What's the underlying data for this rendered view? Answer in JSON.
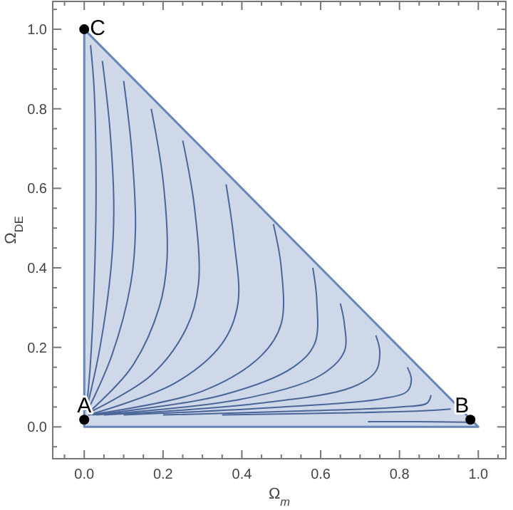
{
  "chart_data": {
    "type": "line",
    "xlabel": "Ω$_{m}$",
    "ylabel": "Ω$_{DE}$",
    "xlim": [
      -0.08,
      1.07
    ],
    "ylim": [
      -0.08,
      1.07
    ],
    "xticks": [
      {
        "value": -0.05,
        "label": null
      },
      {
        "value": 0,
        "label": "0.0"
      },
      {
        "value": 0.05,
        "label": null
      },
      {
        "value": 0.1,
        "label": null
      },
      {
        "value": 0.15,
        "label": null
      },
      {
        "value": 0.2,
        "label": "0.2"
      },
      {
        "value": 0.25,
        "label": null
      },
      {
        "value": 0.3,
        "label": null
      },
      {
        "value": 0.35,
        "label": null
      },
      {
        "value": 0.4,
        "label": "0.4"
      },
      {
        "value": 0.45,
        "label": null
      },
      {
        "value": 0.5,
        "label": null
      },
      {
        "value": 0.55,
        "label": null
      },
      {
        "value": 0.6,
        "label": "0.6"
      },
      {
        "value": 0.65,
        "label": null
      },
      {
        "value": 0.7,
        "label": null
      },
      {
        "value": 0.75,
        "label": null
      },
      {
        "value": 0.8,
        "label": "0.8"
      },
      {
        "value": 0.85,
        "label": null
      },
      {
        "value": 0.9,
        "label": null
      },
      {
        "value": 0.95,
        "label": null
      },
      {
        "value": 1,
        "label": "1.0"
      },
      {
        "value": 1.05,
        "label": null
      }
    ],
    "yticks": [
      {
        "value": -0.05,
        "label": null
      },
      {
        "value": 0,
        "label": "0.0"
      },
      {
        "value": 0.05,
        "label": null
      },
      {
        "value": 0.1,
        "label": null
      },
      {
        "value": 0.15,
        "label": null
      },
      {
        "value": 0.2,
        "label": "0.2"
      },
      {
        "value": 0.25,
        "label": null
      },
      {
        "value": 0.3,
        "label": null
      },
      {
        "value": 0.35,
        "label": null
      },
      {
        "value": 0.4,
        "label": "0.4"
      },
      {
        "value": 0.45,
        "label": null
      },
      {
        "value": 0.5,
        "label": null
      },
      {
        "value": 0.55,
        "label": null
      },
      {
        "value": 0.6,
        "label": "0.6"
      },
      {
        "value": 0.65,
        "label": null
      },
      {
        "value": 0.7,
        "label": null
      },
      {
        "value": 0.75,
        "label": null
      },
      {
        "value": 0.8,
        "label": "0.8"
      },
      {
        "value": 0.85,
        "label": null
      },
      {
        "value": 0.9,
        "label": null
      },
      {
        "value": 0.95,
        "label": null
      },
      {
        "value": 1,
        "label": "1.0"
      },
      {
        "value": 1.05,
        "label": null
      }
    ],
    "grid": false,
    "series": [
      {
        "type": "area",
        "color": "#6787ba",
        "x": [
          0,
          1
        ],
        "values": [
          1,
          0
        ]
      },
      {
        "color": "#4a6699",
        "x": [
          0.005,
          0.015,
          0.025,
          0.03,
          0.025,
          0.016
        ],
        "values": [
          0.04,
          0.15,
          0.35,
          0.6,
          0.85,
          0.96
        ]
      },
      {
        "color": "#4a6699",
        "x": [
          0.005,
          0.04,
          0.068,
          0.075,
          0.065,
          0.046
        ],
        "values": [
          0.04,
          0.2,
          0.4,
          0.55,
          0.75,
          0.92
        ]
      },
      {
        "color": "#4a6699",
        "x": [
          0.008,
          0.07,
          0.118,
          0.13,
          0.12,
          0.1
        ],
        "values": [
          0.04,
          0.18,
          0.36,
          0.5,
          0.7,
          0.87
        ]
      },
      {
        "color": "#4a6699",
        "x": [
          0.01,
          0.12,
          0.19,
          0.21,
          0.2,
          0.17
        ],
        "values": [
          0.035,
          0.15,
          0.3,
          0.42,
          0.62,
          0.8
        ]
      },
      {
        "color": "#4a6699",
        "x": [
          0.01,
          0.17,
          0.26,
          0.29,
          0.28,
          0.25
        ],
        "values": [
          0.035,
          0.13,
          0.25,
          0.36,
          0.55,
          0.72
        ]
      },
      {
        "color": "#4a6699",
        "x": [
          0.01,
          0.23,
          0.35,
          0.39,
          0.38,
          0.36
        ],
        "values": [
          0.03,
          0.11,
          0.21,
          0.31,
          0.47,
          0.61
        ]
      },
      {
        "color": "#4a6699",
        "x": [
          0.01,
          0.3,
          0.45,
          0.5,
          0.5,
          0.48
        ],
        "values": [
          0.03,
          0.09,
          0.18,
          0.26,
          0.4,
          0.51
        ]
      },
      {
        "color": "#4a6699",
        "x": [
          0.02,
          0.35,
          0.53,
          0.585,
          0.59,
          0.58
        ],
        "values": [
          0.03,
          0.08,
          0.15,
          0.21,
          0.32,
          0.4
        ]
      },
      {
        "color": "#4a6699",
        "x": [
          0.03,
          0.4,
          0.6,
          0.66,
          0.66,
          0.65
        ],
        "values": [
          0.03,
          0.07,
          0.13,
          0.19,
          0.26,
          0.31
        ]
      },
      {
        "color": "#4a6699",
        "x": [
          0.05,
          0.45,
          0.68,
          0.74,
          0.75,
          0.74
        ],
        "values": [
          0.03,
          0.06,
          0.1,
          0.14,
          0.19,
          0.23
        ]
      },
      {
        "color": "#4a6699",
        "x": [
          0.1,
          0.5,
          0.75,
          0.82,
          0.83,
          0.82
        ],
        "values": [
          0.03,
          0.05,
          0.07,
          0.09,
          0.12,
          0.15
        ]
      },
      {
        "color": "#4a6699",
        "x": [
          0.2,
          0.55,
          0.8,
          0.87,
          0.88
        ],
        "values": [
          0.03,
          0.04,
          0.05,
          0.06,
          0.08
        ]
      },
      {
        "color": "#4a6699",
        "x": [
          0.35,
          0.65,
          0.85,
          0.93
        ],
        "values": [
          0.03,
          0.035,
          0.04,
          0.045
        ]
      },
      {
        "color": "#4a6699",
        "x": [
          0.72,
          0.85,
          0.97
        ],
        "values": [
          0.013,
          0.013,
          0.012
        ]
      },
      {
        "type": "scatter",
        "color": "#000000",
        "x": [
          0,
          0.98,
          0
        ],
        "values": [
          0.018,
          0.018,
          1
        ],
        "value_labels": [
          "A",
          "B",
          "C"
        ]
      }
    ]
  }
}
